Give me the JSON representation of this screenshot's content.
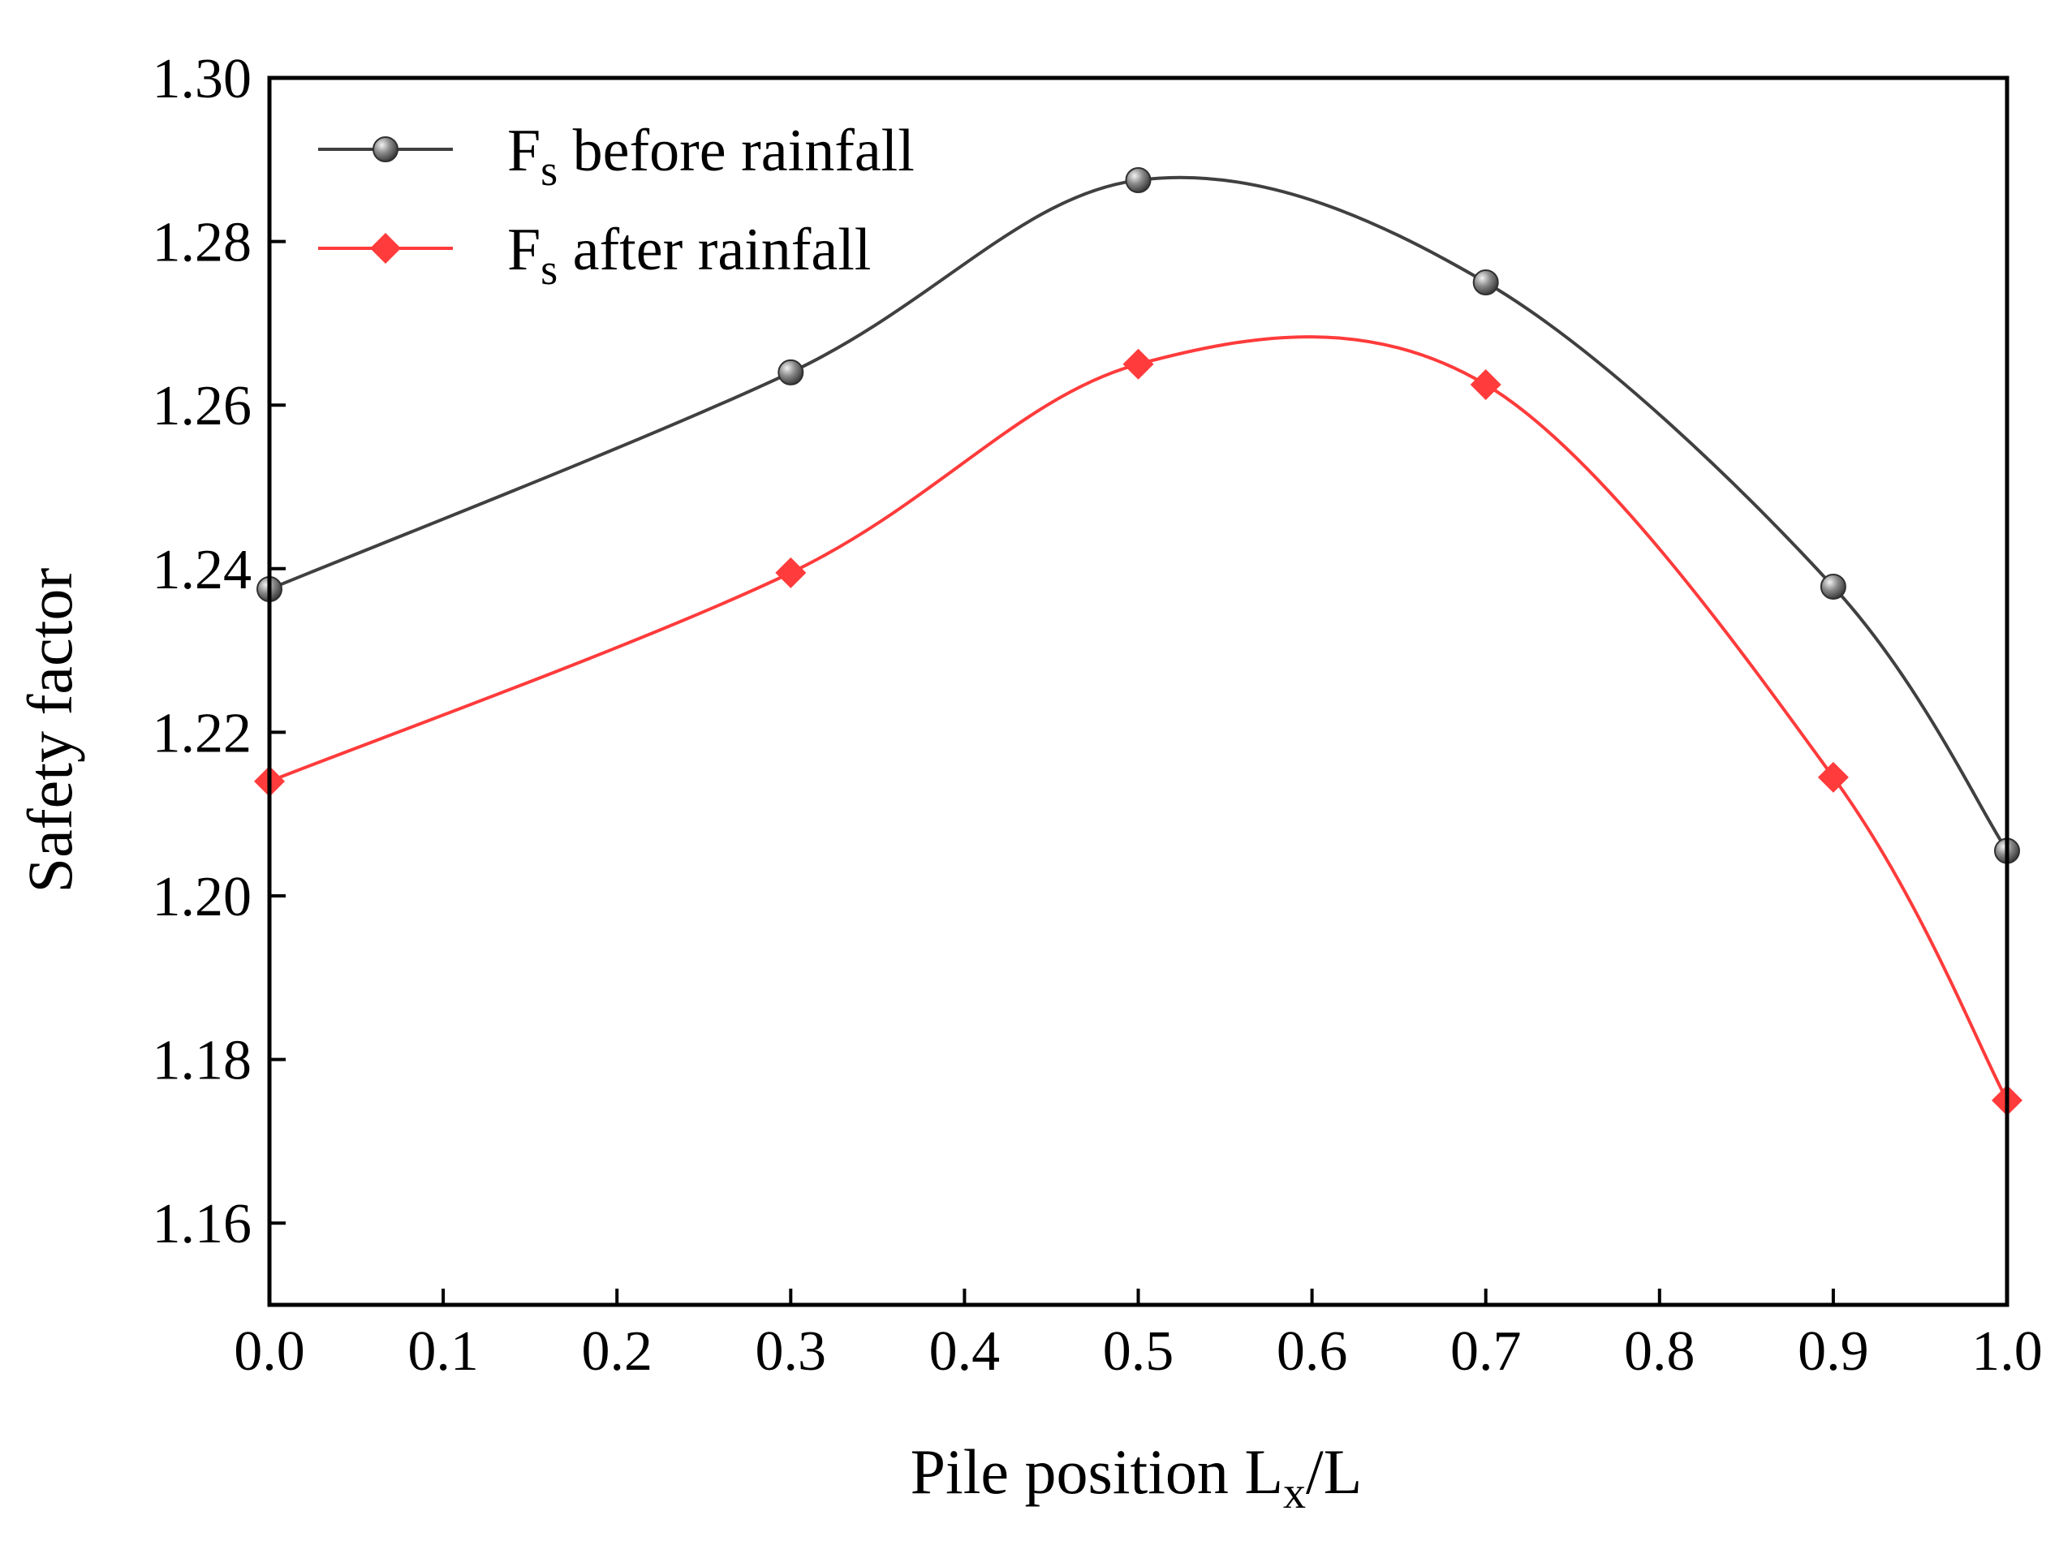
{
  "chart_data": {
    "type": "line",
    "title": "",
    "xlabel": {
      "main": "Pile position  L",
      "sub": "x",
      "tail": "/L"
    },
    "ylabel": "Safety factor",
    "x": [
      0.0,
      0.3,
      0.5,
      0.7,
      0.9,
      1.0
    ],
    "xlim": [
      0.0,
      1.0
    ],
    "ylim": [
      1.15,
      1.3
    ],
    "xticks": [
      "0.0",
      "0.1",
      "0.2",
      "0.3",
      "0.4",
      "0.5",
      "0.6",
      "0.7",
      "0.8",
      "0.9",
      "1.0"
    ],
    "yticks": [
      "1.16",
      "1.18",
      "1.20",
      "1.22",
      "1.24",
      "1.26",
      "1.28",
      "1.30"
    ],
    "legend_position": "top-left",
    "grid": false,
    "series": [
      {
        "name": "F",
        "name_sub": "s",
        "name_tail": " before rainfall",
        "marker": "sphere",
        "color": "#404040",
        "marker_color": "#6e6e6e",
        "values": [
          1.2375,
          1.264,
          1.2875,
          1.275,
          1.2378,
          1.2055
        ]
      },
      {
        "name": "F",
        "name_sub": "s",
        "name_tail": " after rainfall",
        "marker": "diamond",
        "color": "#ff3b3b",
        "marker_color": "#ff3b3b",
        "values": [
          1.214,
          1.2395,
          1.265,
          1.2625,
          1.2145,
          1.175
        ]
      }
    ]
  }
}
